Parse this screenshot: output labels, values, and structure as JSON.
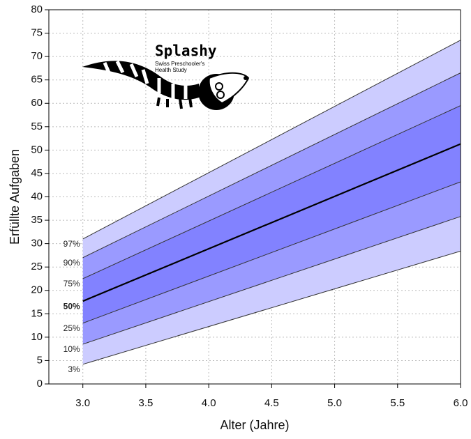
{
  "chart_data": {
    "type": "percentile-bands",
    "x_label": "Alter (Jahre)",
    "y_label": "Erfüllte Aufgaben",
    "x": [
      3.0,
      6.0
    ],
    "series": [
      {
        "name": "97%",
        "color": "#333333",
        "width": 1,
        "values": [
          31,
          73.5
        ]
      },
      {
        "name": "90%",
        "color": "#333333",
        "width": 1,
        "values": [
          27,
          66.5
        ]
      },
      {
        "name": "75%",
        "color": "#333333",
        "width": 1,
        "values": [
          22.5,
          59.5
        ]
      },
      {
        "name": "50%",
        "color": "#000000",
        "width": 2.2,
        "values": [
          17.7,
          51.3
        ]
      },
      {
        "name": "25%",
        "color": "#333333",
        "width": 1,
        "values": [
          13,
          43.2
        ]
      },
      {
        "name": "10%",
        "color": "#333333",
        "width": 1,
        "values": [
          8.5,
          35.8
        ]
      },
      {
        "name": "3%",
        "color": "#333333",
        "width": 1,
        "values": [
          4.2,
          28.4
        ]
      }
    ],
    "band_colors": [
      "#ccccff",
      "#9a9aff",
      "#8282ff",
      "#8282ff",
      "#9a9aff",
      "#ccccff"
    ],
    "xlim": [
      2.73,
      6.0
    ],
    "ylim": [
      0,
      80
    ],
    "xticks": [
      {
        "value": 3,
        "label": "3.0"
      },
      3.5,
      {
        "value": 4,
        "label": "4.0"
      },
      4.5,
      {
        "value": 5,
        "label": "5.0"
      },
      5.5,
      {
        "value": 6,
        "label": "6.0"
      }
    ],
    "yticks": [
      0,
      5,
      10,
      15,
      20,
      25,
      30,
      35,
      40,
      45,
      50,
      55,
      60,
      65,
      70,
      75,
      80
    ],
    "grid": true
  },
  "logo": {
    "title": "Splashy",
    "line1": "Swiss Preschooler's",
    "line2": "Health Study"
  }
}
